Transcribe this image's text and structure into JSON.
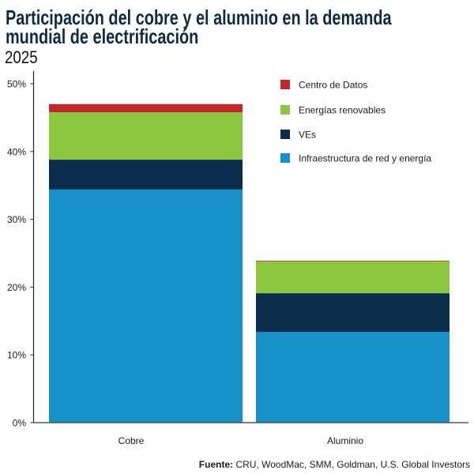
{
  "header": {
    "title_line1": "Participación del cobre y el aluminio en la demanda",
    "title_line2": "mundial de electrificación",
    "subtitle": "2025"
  },
  "source": {
    "label": "Fuente:",
    "text": " CRU, WoodMac, SMM, Goldman, U.S. Global Investors"
  },
  "colors": {
    "title": "#0d2b45",
    "axis": "#333333",
    "centro_de_datos": "#c1272d",
    "energias_renovables": "#8dc63f",
    "ves": "#0b2d4c",
    "infraestructura": "#1790c8"
  },
  "chart_data": {
    "type": "bar",
    "stacked": true,
    "title": "Participación del cobre y el aluminio en la demanda mundial de electrificación",
    "subtitle": "2025",
    "categories": [
      "Cobre",
      "Aluminio"
    ],
    "series": [
      {
        "name": "Infraestructura de red y energía",
        "color": "#1790c8",
        "values": [
          34.4,
          13.4
        ]
      },
      {
        "name": "VEs",
        "color": "#0b2d4c",
        "values": [
          4.4,
          5.7
        ]
      },
      {
        "name": "Energías renovables",
        "color": "#8dc63f",
        "values": [
          7.0,
          4.7
        ]
      },
      {
        "name": "Centro de Datos",
        "color": "#c1272d",
        "values": [
          1.2,
          0.1
        ]
      }
    ],
    "totals": [
      47.0,
      23.9
    ],
    "legend": [
      {
        "label": "Centro de Datos",
        "color": "#c1272d"
      },
      {
        "label": "Energías renovables",
        "color": "#8dc63f"
      },
      {
        "label": "VEs",
        "color": "#0b2d4c"
      },
      {
        "label": "Infraestructura de red y energía",
        "color": "#1790c8"
      }
    ],
    "legend_position": "top-right",
    "xlabel": "",
    "ylabel": "",
    "ylim": [
      0,
      50
    ],
    "yticks": [
      0,
      10,
      20,
      30,
      40,
      50
    ],
    "ytick_labels": [
      "0%",
      "10%",
      "20%",
      "30%",
      "40%",
      "50%"
    ],
    "grid": false,
    "source": "Fuente: CRU, WoodMac, SMM, Goldman, U.S. Global Investors"
  }
}
